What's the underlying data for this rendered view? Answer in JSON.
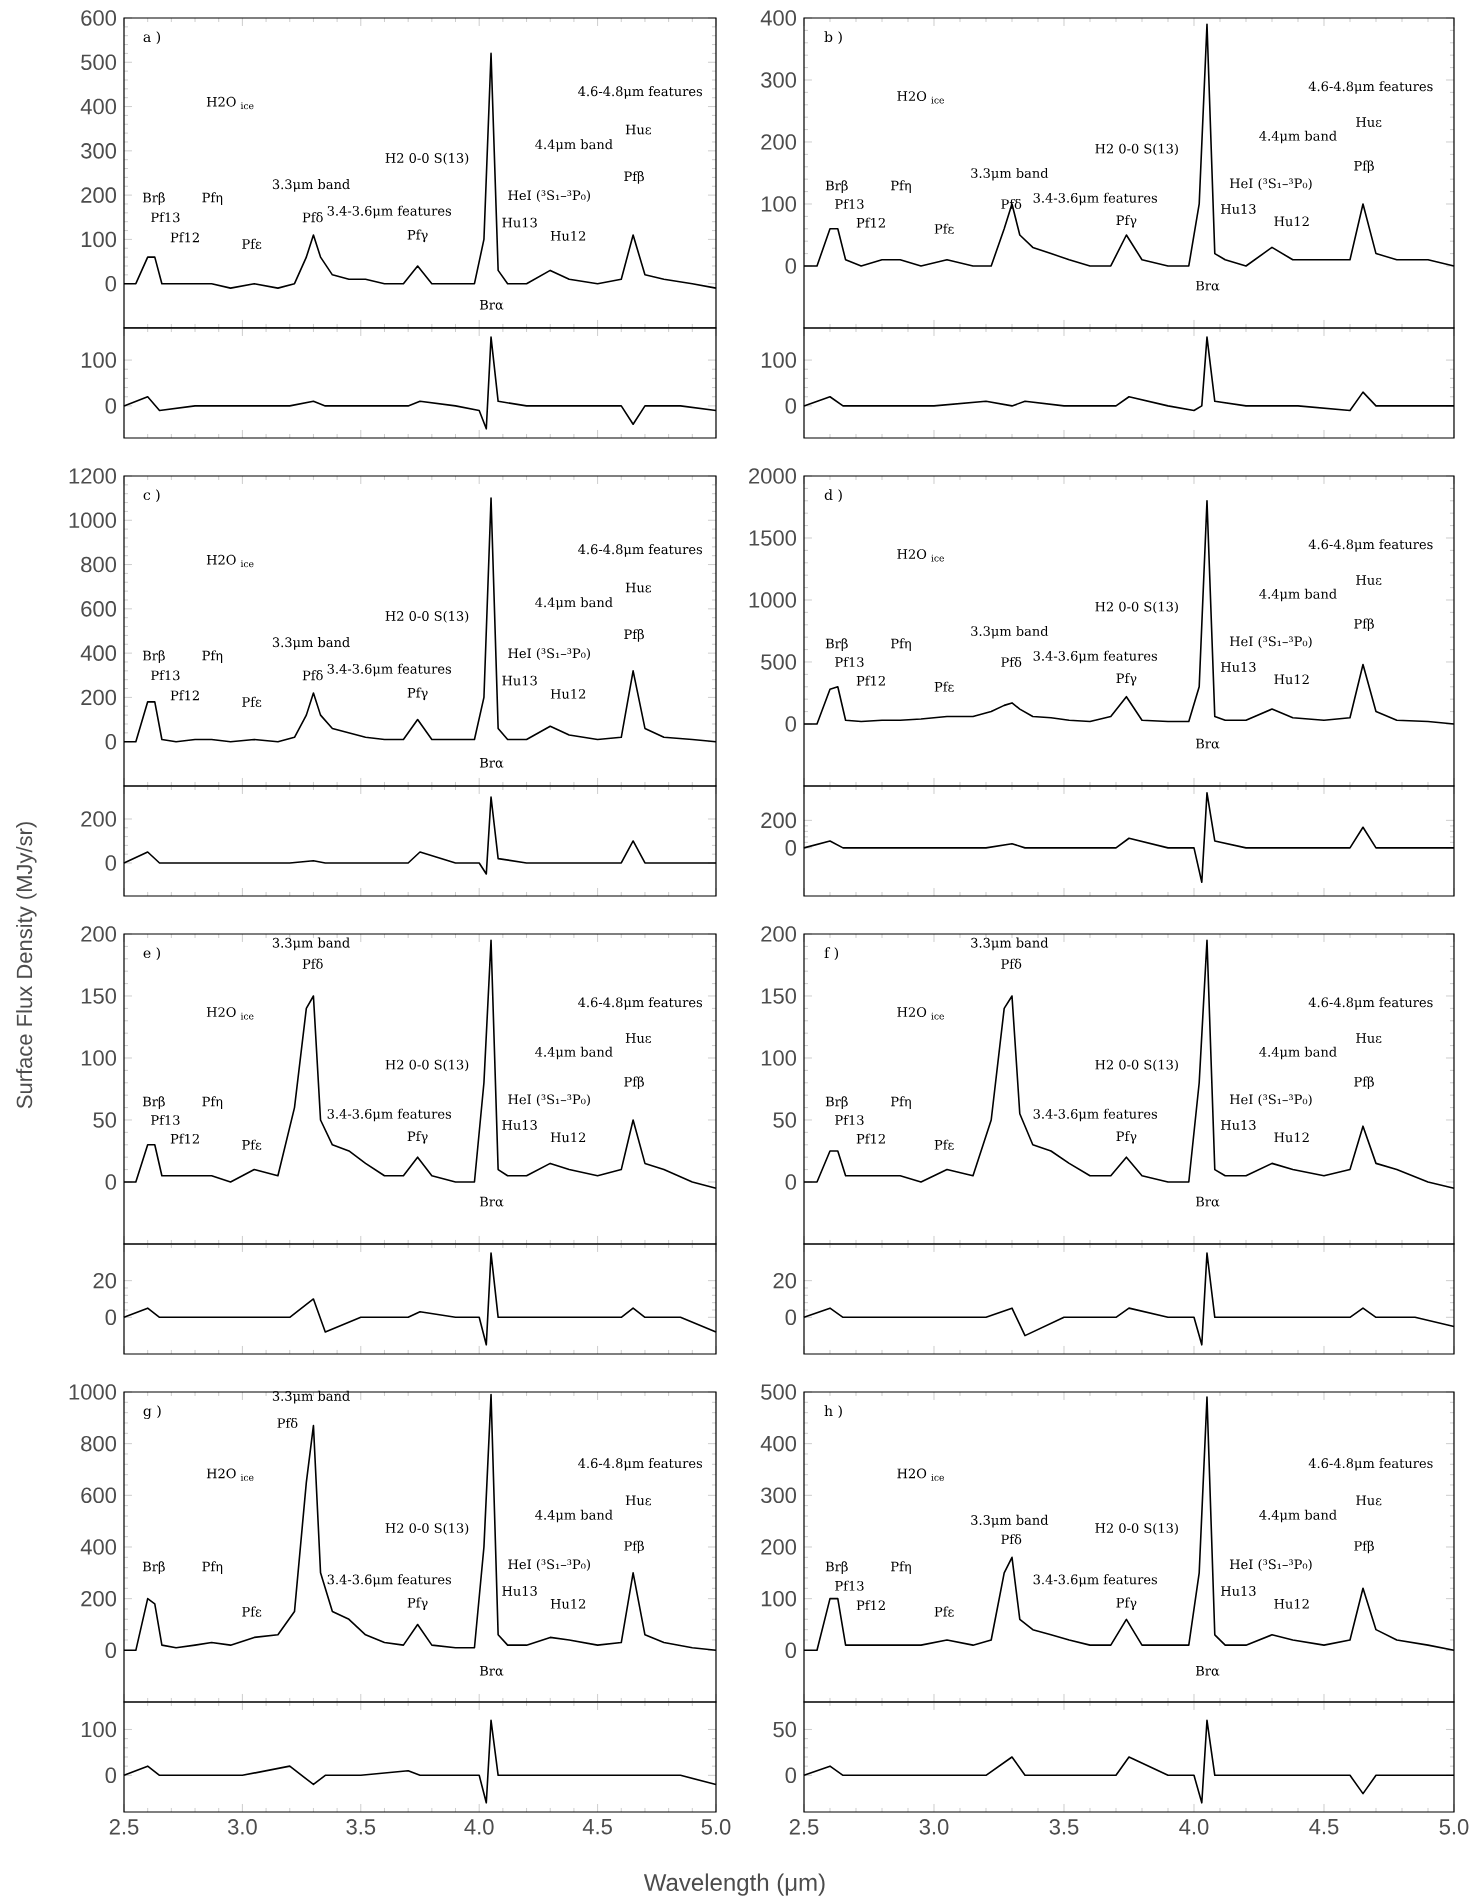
{
  "chart_data": [
    {
      "type": "line",
      "title": "a )",
      "x": [
        2.5,
        2.55,
        2.6,
        2.63,
        2.66,
        2.72,
        2.8,
        2.87,
        2.95,
        3.05,
        3.15,
        3.22,
        3.27,
        3.3,
        3.33,
        3.38,
        3.45,
        3.52,
        3.6,
        3.68,
        3.74,
        3.8,
        3.9,
        3.98,
        4.02,
        4.05,
        4.08,
        4.12,
        4.2,
        4.3,
        4.38,
        4.5,
        4.6,
        4.65,
        4.7,
        4.78,
        4.9,
        5.0
      ],
      "series": [
        {
          "color": "#000000",
          "values": [
            0,
            0,
            60,
            60,
            0,
            0,
            0,
            0,
            -10,
            0,
            -10,
            0,
            60,
            110,
            60,
            20,
            10,
            10,
            0,
            0,
            40,
            0,
            0,
            0,
            100,
            520,
            30,
            0,
            0,
            30,
            10,
            0,
            10,
            110,
            20,
            10,
            0,
            -10
          ]
        }
      ],
      "xlim": [
        2.5,
        5.0
      ],
      "ylim": [
        -100,
        600
      ],
      "xticks": [
        2.5,
        3,
        3.5,
        4,
        4.5,
        5
      ],
      "yticks": [
        0,
        100,
        200,
        300,
        400,
        500,
        600
      ],
      "tick_labels": "y",
      "annotations": [
        "Brβ",
        "Pf13",
        "Pf12",
        "Pfη",
        "Pfε",
        "Pfδ",
        "3.3μm band",
        "3.4-3.6μm features",
        "Pfγ",
        "H2 0-0 S(13)",
        "Brα",
        "Hu13",
        "HeI (³S₁–³P₀)",
        "Hu12",
        "4.4μm band",
        "Pfβ",
        "Huε",
        "4.6-4.8μm features",
        "H2O $_{ice}$"
      ]
    },
    {
      "type": "line",
      "title": "b )",
      "x": [
        2.5,
        2.55,
        2.6,
        2.63,
        2.66,
        2.72,
        2.8,
        2.87,
        2.95,
        3.05,
        3.15,
        3.22,
        3.27,
        3.3,
        3.33,
        3.38,
        3.45,
        3.52,
        3.6,
        3.68,
        3.74,
        3.8,
        3.9,
        3.98,
        4.02,
        4.05,
        4.08,
        4.12,
        4.2,
        4.3,
        4.38,
        4.5,
        4.6,
        4.65,
        4.7,
        4.78,
        4.9,
        5.0
      ],
      "series": [
        {
          "color": "#000000",
          "values": [
            0,
            0,
            60,
            60,
            10,
            0,
            10,
            10,
            0,
            10,
            0,
            0,
            60,
            100,
            50,
            30,
            20,
            10,
            0,
            0,
            50,
            10,
            0,
            0,
            100,
            390,
            20,
            10,
            0,
            30,
            10,
            10,
            10,
            100,
            20,
            10,
            10,
            0
          ]
        }
      ],
      "xlim": [
        2.5,
        5.0
      ],
      "ylim": [
        -100,
        400
      ],
      "xticks": [
        2.5,
        3,
        3.5,
        4,
        4.5,
        5
      ],
      "yticks": [
        0,
        100,
        200,
        300,
        400
      ],
      "tick_labels": "y",
      "annotations": [
        "Brβ",
        "Pf13",
        "Pf12",
        "Pfη",
        "Pfε",
        "Pfδ",
        "3.3μm band",
        "3.4-3.6μm features",
        "Pfγ",
        "H2 0-0 S(13)",
        "Brα",
        "Hu13",
        "HeI (³S₁–³P₀)",
        "Hu12",
        "4.4μm band",
        "Pfβ",
        "Huε",
        "4.6-4.8μm features",
        "H2O $_{ice}$"
      ]
    },
    {
      "type": "line",
      "x": [
        2.5,
        2.6,
        2.65,
        2.8,
        3.0,
        3.2,
        3.3,
        3.35,
        3.5,
        3.7,
        3.75,
        3.9,
        4.0,
        4.03,
        4.05,
        4.08,
        4.2,
        4.4,
        4.6,
        4.65,
        4.7,
        4.85,
        5.0
      ],
      "series": [
        {
          "color": "#000000",
          "values": [
            0,
            20,
            -10,
            0,
            0,
            0,
            10,
            0,
            0,
            0,
            10,
            0,
            -10,
            -50,
            150,
            10,
            0,
            0,
            0,
            -40,
            0,
            0,
            -10
          ]
        }
      ],
      "xlim": [
        2.5,
        5.0
      ],
      "ylim": [
        -70,
        170
      ],
      "xticks": [
        2.5,
        3,
        3.5,
        4,
        4.5,
        5
      ],
      "yticks": [
        0,
        100
      ],
      "tick_labels": "y"
    },
    {
      "type": "line",
      "x": [
        2.5,
        2.6,
        2.65,
        2.8,
        3.0,
        3.2,
        3.3,
        3.35,
        3.5,
        3.7,
        3.75,
        3.9,
        4.0,
        4.03,
        4.05,
        4.08,
        4.2,
        4.4,
        4.6,
        4.65,
        4.7,
        4.85,
        5.0
      ],
      "series": [
        {
          "color": "#000000",
          "values": [
            0,
            20,
            0,
            0,
            0,
            10,
            0,
            10,
            0,
            0,
            20,
            0,
            -10,
            0,
            150,
            10,
            0,
            0,
            -10,
            30,
            0,
            0,
            0
          ]
        }
      ],
      "xlim": [
        2.5,
        5.0
      ],
      "ylim": [
        -70,
        170
      ],
      "xticks": [
        2.5,
        3,
        3.5,
        4,
        4.5,
        5
      ],
      "yticks": [
        0,
        100
      ],
      "tick_labels": "y"
    },
    {
      "type": "line",
      "title": "c )",
      "x": [
        2.5,
        2.55,
        2.6,
        2.63,
        2.66,
        2.72,
        2.8,
        2.87,
        2.95,
        3.05,
        3.15,
        3.22,
        3.27,
        3.3,
        3.33,
        3.38,
        3.45,
        3.52,
        3.6,
        3.68,
        3.74,
        3.8,
        3.9,
        3.98,
        4.02,
        4.05,
        4.08,
        4.12,
        4.2,
        4.3,
        4.38,
        4.5,
        4.6,
        4.65,
        4.7,
        4.78,
        4.9,
        5.0
      ],
      "series": [
        {
          "color": "#000000",
          "values": [
            0,
            0,
            180,
            180,
            10,
            0,
            10,
            10,
            0,
            10,
            0,
            20,
            120,
            220,
            120,
            60,
            40,
            20,
            10,
            10,
            100,
            10,
            10,
            10,
            200,
            1100,
            60,
            10,
            10,
            70,
            30,
            10,
            20,
            320,
            60,
            20,
            10,
            0
          ]
        }
      ],
      "xlim": [
        2.5,
        5.0
      ],
      "ylim": [
        -200,
        1200
      ],
      "xticks": [
        2.5,
        3,
        3.5,
        4,
        4.5,
        5
      ],
      "yticks": [
        0,
        200,
        400,
        600,
        800,
        1000,
        1200
      ],
      "tick_labels": "y",
      "annotations": [
        "Brβ",
        "Pf13",
        "Pf12",
        "Pfη",
        "Pfε",
        "Pfδ",
        "3.3μm band",
        "3.4-3.6μm features",
        "Pfγ",
        "H2 0-0 S(13)",
        "Brα",
        "Hu13",
        "HeI (³S₁–³P₀)",
        "Hu12",
        "4.4μm band",
        "Pfβ",
        "Huε",
        "4.6-4.8μm features",
        "H2O $_{ice}$"
      ]
    },
    {
      "type": "line",
      "title": "d )",
      "x": [
        2.5,
        2.55,
        2.6,
        2.63,
        2.66,
        2.72,
        2.8,
        2.87,
        2.95,
        3.05,
        3.15,
        3.22,
        3.27,
        3.3,
        3.33,
        3.38,
        3.45,
        3.52,
        3.6,
        3.68,
        3.74,
        3.8,
        3.9,
        3.98,
        4.02,
        4.05,
        4.08,
        4.12,
        4.2,
        4.3,
        4.38,
        4.5,
        4.6,
        4.65,
        4.7,
        4.78,
        4.9,
        5.0
      ],
      "series": [
        {
          "color": "#000000",
          "values": [
            0,
            0,
            280,
            300,
            30,
            20,
            30,
            30,
            40,
            60,
            60,
            100,
            150,
            170,
            120,
            60,
            50,
            30,
            20,
            60,
            220,
            30,
            20,
            20,
            300,
            1800,
            60,
            30,
            30,
            120,
            50,
            30,
            50,
            480,
            100,
            30,
            20,
            0
          ]
        }
      ],
      "xlim": [
        2.5,
        5.0
      ],
      "ylim": [
        -500,
        2000
      ],
      "xticks": [
        2.5,
        3,
        3.5,
        4,
        4.5,
        5
      ],
      "yticks": [
        0,
        500,
        1000,
        1500,
        2000
      ],
      "tick_labels": "y",
      "annotations": [
        "Brβ",
        "Pf13",
        "Pf12",
        "Pfη",
        "Pfε",
        "Pfδ",
        "3.3μm band",
        "3.4-3.6μm features",
        "Pfγ",
        "H2 0-0 S(13)",
        "Brα",
        "Hu13",
        "HeI (³S₁–³P₀)",
        "Hu12",
        "4.4μm band",
        "Pfβ",
        "Huε",
        "4.6-4.8μm features",
        "H2O $_{ice}$"
      ]
    },
    {
      "type": "line",
      "x": [
        2.5,
        2.6,
        2.65,
        2.8,
        3.0,
        3.2,
        3.3,
        3.35,
        3.5,
        3.7,
        3.75,
        3.9,
        4.0,
        4.03,
        4.05,
        4.08,
        4.2,
        4.4,
        4.6,
        4.65,
        4.7,
        4.85,
        5.0
      ],
      "series": [
        {
          "color": "#000000",
          "values": [
            0,
            50,
            0,
            0,
            0,
            0,
            10,
            0,
            0,
            0,
            50,
            0,
            0,
            -50,
            300,
            20,
            0,
            0,
            0,
            100,
            0,
            0,
            0
          ]
        }
      ],
      "xlim": [
        2.5,
        5.0
      ],
      "ylim": [
        -150,
        350
      ],
      "xticks": [
        2.5,
        3,
        3.5,
        4,
        4.5,
        5
      ],
      "yticks": [
        0,
        200
      ],
      "tick_labels": "y"
    },
    {
      "type": "line",
      "x": [
        2.5,
        2.6,
        2.65,
        2.8,
        3.0,
        3.2,
        3.3,
        3.35,
        3.5,
        3.7,
        3.75,
        3.9,
        4.0,
        4.03,
        4.05,
        4.08,
        4.2,
        4.4,
        4.6,
        4.65,
        4.7,
        4.85,
        5.0
      ],
      "series": [
        {
          "color": "#000000",
          "values": [
            0,
            50,
            0,
            0,
            0,
            0,
            30,
            0,
            0,
            0,
            70,
            0,
            0,
            -250,
            400,
            50,
            0,
            0,
            0,
            150,
            0,
            0,
            0
          ]
        }
      ],
      "xlim": [
        2.5,
        5.0
      ],
      "ylim": [
        -350,
        450
      ],
      "xticks": [
        2.5,
        3,
        3.5,
        4,
        4.5,
        5
      ],
      "yticks": [
        0,
        200
      ],
      "tick_labels": "y"
    },
    {
      "type": "line",
      "title": "e )",
      "ylabel": "Surface Flux Density (MJy/sr)",
      "x": [
        2.5,
        2.55,
        2.6,
        2.63,
        2.66,
        2.72,
        2.8,
        2.87,
        2.95,
        3.05,
        3.15,
        3.22,
        3.27,
        3.3,
        3.33,
        3.38,
        3.45,
        3.52,
        3.6,
        3.68,
        3.74,
        3.8,
        3.9,
        3.98,
        4.02,
        4.05,
        4.08,
        4.12,
        4.2,
        4.3,
        4.38,
        4.5,
        4.6,
        4.65,
        4.7,
        4.78,
        4.9,
        5.0
      ],
      "series": [
        {
          "color": "#000000",
          "values": [
            0,
            0,
            30,
            30,
            5,
            5,
            5,
            5,
            0,
            10,
            5,
            60,
            140,
            150,
            50,
            30,
            25,
            15,
            5,
            5,
            20,
            5,
            0,
            0,
            80,
            195,
            10,
            5,
            5,
            15,
            10,
            5,
            10,
            50,
            15,
            10,
            0,
            -5
          ]
        }
      ],
      "xlim": [
        2.5,
        5.0
      ],
      "ylim": [
        -50,
        200
      ],
      "xticks": [
        2.5,
        3,
        3.5,
        4,
        4.5,
        5
      ],
      "yticks": [
        0,
        50,
        100,
        150,
        200
      ],
      "tick_labels": "y",
      "annotations": [
        "Brβ",
        "Pf13",
        "Pf12",
        "Pfη",
        "Pfε",
        "Pfδ",
        "3.3μm band",
        "3.4-3.6μm features",
        "Pfγ",
        "H2 0-0 S(13)",
        "Brα",
        "Hu13",
        "HeI (³S₁–³P₀)",
        "Hu12",
        "4.4μm band",
        "Pfβ",
        "Huε",
        "4.6-4.8μm features",
        "H2O $_{ice}$"
      ]
    },
    {
      "type": "line",
      "title": "f )",
      "x": [
        2.5,
        2.55,
        2.6,
        2.63,
        2.66,
        2.72,
        2.8,
        2.87,
        2.95,
        3.05,
        3.15,
        3.22,
        3.27,
        3.3,
        3.33,
        3.38,
        3.45,
        3.52,
        3.6,
        3.68,
        3.74,
        3.8,
        3.9,
        3.98,
        4.02,
        4.05,
        4.08,
        4.12,
        4.2,
        4.3,
        4.38,
        4.5,
        4.6,
        4.65,
        4.7,
        4.78,
        4.9,
        5.0
      ],
      "series": [
        {
          "color": "#000000",
          "values": [
            0,
            0,
            25,
            25,
            5,
            5,
            5,
            5,
            0,
            10,
            5,
            50,
            140,
            150,
            55,
            30,
            25,
            15,
            5,
            5,
            20,
            5,
            0,
            0,
            80,
            195,
            10,
            5,
            5,
            15,
            10,
            5,
            10,
            45,
            15,
            10,
            0,
            -5
          ]
        }
      ],
      "xlim": [
        2.5,
        5.0
      ],
      "ylim": [
        -50,
        200
      ],
      "xticks": [
        2.5,
        3,
        3.5,
        4,
        4.5,
        5
      ],
      "yticks": [
        0,
        50,
        100,
        150,
        200
      ],
      "tick_labels": "y",
      "annotations": [
        "Brβ",
        "Pf13",
        "Pf12",
        "Pfη",
        "Pfε",
        "Pfδ",
        "3.3μm band",
        "3.4-3.6μm features",
        "Pfγ",
        "H2 0-0 S(13)",
        "Brα",
        "Hu13",
        "HeI (³S₁–³P₀)",
        "Hu12",
        "4.4μm band",
        "Pfβ",
        "Huε",
        "4.6-4.8μm features",
        "H2O $_{ice}$"
      ]
    },
    {
      "type": "line",
      "x": [
        2.5,
        2.6,
        2.65,
        2.8,
        3.0,
        3.2,
        3.3,
        3.35,
        3.5,
        3.7,
        3.75,
        3.9,
        4.0,
        4.03,
        4.05,
        4.08,
        4.2,
        4.4,
        4.6,
        4.65,
        4.7,
        4.85,
        5.0
      ],
      "series": [
        {
          "color": "#000000",
          "values": [
            0,
            5,
            0,
            0,
            0,
            0,
            10,
            -8,
            0,
            0,
            3,
            0,
            0,
            -15,
            35,
            0,
            0,
            0,
            0,
            5,
            0,
            0,
            -8
          ]
        }
      ],
      "xlim": [
        2.5,
        5.0
      ],
      "ylim": [
        -20,
        40
      ],
      "xticks": [
        2.5,
        3,
        3.5,
        4,
        4.5,
        5
      ],
      "yticks": [
        0,
        20
      ],
      "tick_labels": "y"
    },
    {
      "type": "line",
      "x": [
        2.5,
        2.6,
        2.65,
        2.8,
        3.0,
        3.2,
        3.3,
        3.35,
        3.5,
        3.7,
        3.75,
        3.9,
        4.0,
        4.03,
        4.05,
        4.08,
        4.2,
        4.4,
        4.6,
        4.65,
        4.7,
        4.85,
        5.0
      ],
      "series": [
        {
          "color": "#000000",
          "values": [
            0,
            5,
            0,
            0,
            0,
            0,
            5,
            -10,
            0,
            0,
            5,
            0,
            0,
            -15,
            35,
            0,
            0,
            0,
            0,
            5,
            0,
            0,
            -5
          ]
        }
      ],
      "xlim": [
        2.5,
        5.0
      ],
      "ylim": [
        -20,
        40
      ],
      "xticks": [
        2.5,
        3,
        3.5,
        4,
        4.5,
        5
      ],
      "yticks": [
        0,
        20
      ],
      "tick_labels": "y"
    },
    {
      "type": "line",
      "title": "g )",
      "x": [
        2.5,
        2.55,
        2.6,
        2.63,
        2.66,
        2.72,
        2.8,
        2.87,
        2.95,
        3.05,
        3.15,
        3.22,
        3.27,
        3.3,
        3.33,
        3.38,
        3.45,
        3.52,
        3.6,
        3.68,
        3.74,
        3.8,
        3.9,
        3.98,
        4.02,
        4.05,
        4.08,
        4.12,
        4.2,
        4.3,
        4.38,
        4.5,
        4.6,
        4.65,
        4.7,
        4.78,
        4.9,
        5.0
      ],
      "series": [
        {
          "color": "#000000",
          "values": [
            0,
            0,
            200,
            180,
            20,
            10,
            20,
            30,
            20,
            50,
            60,
            150,
            650,
            870,
            300,
            150,
            120,
            60,
            30,
            20,
            100,
            20,
            10,
            10,
            400,
            990,
            60,
            20,
            20,
            50,
            40,
            20,
            30,
            300,
            60,
            30,
            10,
            0
          ]
        }
      ],
      "xlim": [
        2.5,
        5.0
      ],
      "ylim": [
        -200,
        1000
      ],
      "xticks": [
        2.5,
        3,
        3.5,
        4,
        4.5,
        5
      ],
      "yticks": [
        0,
        200,
        400,
        600,
        800,
        1000
      ],
      "tick_labels": "y",
      "annotations": [
        "Brβ",
        "Pfη",
        "Pfε",
        "Pfδ",
        "3.3μm band",
        "3.4-3.6μm features",
        "Pfγ",
        "H2 0-0 S(13)",
        "Brα",
        "Hu13",
        "HeI (³S₁–³P₀)",
        "Hu12",
        "4.4μm band",
        "Pfβ",
        "Huε",
        "4.6-4.8μm features",
        "H2O $_{ice}$"
      ]
    },
    {
      "type": "line",
      "title": "h )",
      "x": [
        2.5,
        2.55,
        2.6,
        2.63,
        2.66,
        2.72,
        2.8,
        2.87,
        2.95,
        3.05,
        3.15,
        3.22,
        3.27,
        3.3,
        3.33,
        3.38,
        3.45,
        3.52,
        3.6,
        3.68,
        3.74,
        3.8,
        3.9,
        3.98,
        4.02,
        4.05,
        4.08,
        4.12,
        4.2,
        4.3,
        4.38,
        4.5,
        4.6,
        4.65,
        4.7,
        4.78,
        4.9,
        5.0
      ],
      "series": [
        {
          "color": "#000000",
          "values": [
            0,
            0,
            100,
            100,
            10,
            10,
            10,
            10,
            10,
            20,
            10,
            20,
            150,
            180,
            60,
            40,
            30,
            20,
            10,
            10,
            60,
            10,
            10,
            10,
            150,
            490,
            30,
            10,
            10,
            30,
            20,
            10,
            20,
            120,
            40,
            20,
            10,
            0
          ]
        }
      ],
      "xlim": [
        2.5,
        5.0
      ],
      "ylim": [
        -100,
        500
      ],
      "xticks": [
        2.5,
        3,
        3.5,
        4,
        4.5,
        5
      ],
      "yticks": [
        0,
        100,
        200,
        300,
        400,
        500
      ],
      "tick_labels": "y",
      "annotations": [
        "Brβ",
        "Pf13",
        "Pf12",
        "Pfη",
        "Pfε",
        "Pfδ",
        "3.3μm band",
        "3.4-3.6μm features",
        "Pfγ",
        "H2 0-0 S(13)",
        "Brα",
        "Hu13",
        "HeI (³S₁–³P₀)",
        "Hu12",
        "4.4μm band",
        "Pfβ",
        "Huε",
        "4.6-4.8μm features",
        "H2O $_{ice}$"
      ]
    },
    {
      "type": "line",
      "xlabel": "Wavelength (μm)",
      "x": [
        2.5,
        2.6,
        2.65,
        2.8,
        3.0,
        3.2,
        3.3,
        3.35,
        3.5,
        3.7,
        3.75,
        3.9,
        4.0,
        4.03,
        4.05,
        4.08,
        4.2,
        4.4,
        4.6,
        4.65,
        4.7,
        4.85,
        5.0
      ],
      "series": [
        {
          "color": "#000000",
          "values": [
            0,
            20,
            0,
            0,
            0,
            20,
            -20,
            0,
            0,
            10,
            0,
            0,
            0,
            -60,
            120,
            0,
            0,
            0,
            0,
            0,
            0,
            0,
            -20
          ]
        }
      ],
      "xlim": [
        2.5,
        5.0
      ],
      "ylim": [
        -80,
        160
      ],
      "xticks": [
        2.5,
        {
          "value": 3,
          "label": "3.0"
        },
        3.5,
        {
          "value": 4,
          "label": "4.0"
        },
        4.5,
        {
          "value": 5,
          "label": "5.0"
        }
      ],
      "yticks": [
        0,
        100
      ]
    },
    {
      "type": "line",
      "x": [
        2.5,
        2.6,
        2.65,
        2.8,
        3.0,
        3.2,
        3.3,
        3.35,
        3.5,
        3.7,
        3.75,
        3.9,
        4.0,
        4.03,
        4.05,
        4.08,
        4.2,
        4.4,
        4.6,
        4.65,
        4.7,
        4.85,
        5.0
      ],
      "series": [
        {
          "color": "#000000",
          "values": [
            0,
            10,
            0,
            0,
            0,
            0,
            20,
            0,
            0,
            0,
            20,
            0,
            0,
            -30,
            60,
            0,
            0,
            0,
            0,
            -20,
            0,
            0,
            0
          ]
        }
      ],
      "xlim": [
        2.5,
        5.0
      ],
      "ylim": [
        -40,
        80
      ],
      "xticks": [
        2.5,
        {
          "value": 3,
          "label": "3.0"
        },
        3.5,
        {
          "value": 4,
          "label": "4.0"
        },
        4.5,
        {
          "value": 5,
          "label": "5.0"
        }
      ],
      "yticks": [
        0,
        50
      ]
    }
  ]
}
